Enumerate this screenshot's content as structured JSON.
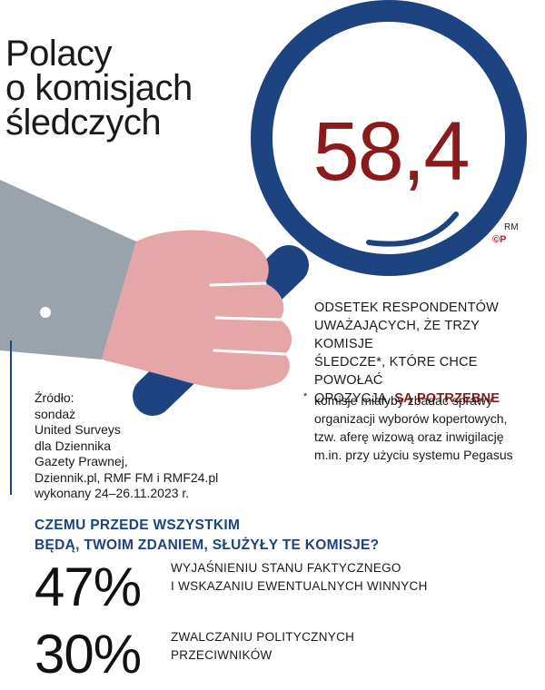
{
  "title": {
    "lines": [
      "Polacy",
      "o komisjach",
      "śledczych"
    ]
  },
  "main_value": "58,4",
  "logo": {
    "rm": "RM",
    "mark": "©P"
  },
  "respondents": {
    "line1": "ODSETEK RESPONDENTÓW",
    "line2": "UWAŻAJĄCYCH, ŻE TRZY KOMISJE",
    "line3": "ŚLEDCZE*, KTÓRE CHCE POWOŁAĆ",
    "line4_prefix": "OPOZYCJA,",
    "line4_highlight": "SĄ POTRZEBNE"
  },
  "source": {
    "lines": [
      "Źródło:",
      "sondaż",
      "United Surveys",
      "dla Dziennika",
      "Gazety Prawnej,",
      "Dziennik.pl, RMF FM i RMF24.pl",
      "wykonany 24–26.11.2023 r."
    ]
  },
  "footnote": {
    "star": "*",
    "lines": [
      "komisje miałyby zbadać sprawy",
      "organizacji wyborów kopertowych,",
      "tzw. aferę wizową oraz inwigilację",
      "m.in. przy użyciu systemu Pegasus"
    ]
  },
  "question": {
    "lines": [
      "CZEMU PRZEDE WSZYSTKIM",
      "BĘDĄ, TWOIM ZDANIEM, SŁUŻYŁY TE KOMISJE?"
    ]
  },
  "answers": [
    {
      "percent": "47%",
      "label_lines": [
        "WYJAŚNIENIU STANU FAKTYCZNEGO",
        "I WSKAZANIU EWENTUALNYCH WINNYCH"
      ]
    },
    {
      "percent": "30%",
      "label_lines": [
        "ZWALCZANIU POLITYCZNYCH",
        "PRZECIWNIKÓW"
      ]
    }
  ],
  "colors": {
    "accent_red": "#8b1a1a",
    "accent_blue": "#1d4380",
    "sleeve_gray": "#9aa3ab",
    "hand_pink": "#e4a6a6"
  },
  "icons": [
    "magnifying-glass-icon",
    "hand-icon",
    "rmf-logo-icon"
  ]
}
